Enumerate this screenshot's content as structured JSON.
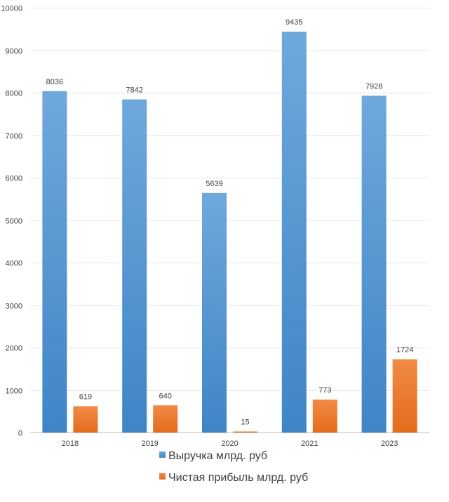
{
  "chart_data": {
    "type": "bar",
    "categories": [
      "2018",
      "2019",
      "2020",
      "2021",
      "2023"
    ],
    "series": [
      {
        "name": "Выручка млрд. руб",
        "values": [
          8036,
          7842,
          5639,
          9435,
          7928
        ],
        "color": "#5b9bd5"
      },
      {
        "name": "Чистая прибыль млрд. руб",
        "values": [
          619,
          640,
          15,
          773,
          1724
        ],
        "color": "#ed7d31"
      }
    ],
    "ylim": [
      0,
      10000
    ],
    "yticks": [
      "0",
      "1000",
      "2000",
      "3000",
      "4000",
      "5000",
      "6000",
      "7000",
      "8000",
      "9000",
      "10000"
    ],
    "grid": true,
    "legend_position": "bottom-center",
    "title": "",
    "xlabel": "",
    "ylabel": ""
  }
}
